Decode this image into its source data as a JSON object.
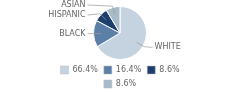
{
  "chart_data": {
    "type": "pie",
    "categories": [
      "WHITE",
      "BLACK",
      "HISPANIC",
      "ASIAN"
    ],
    "values": [
      66.4,
      16.4,
      8.6,
      8.6
    ],
    "value_labels": [
      "66.4%",
      "16.4%",
      "8.6%",
      "8.6%"
    ],
    "colors": [
      "#c5d3e0",
      "#5b7fa6",
      "#1e3f6e",
      "#a8bbc9"
    ],
    "legend": "bottom"
  }
}
